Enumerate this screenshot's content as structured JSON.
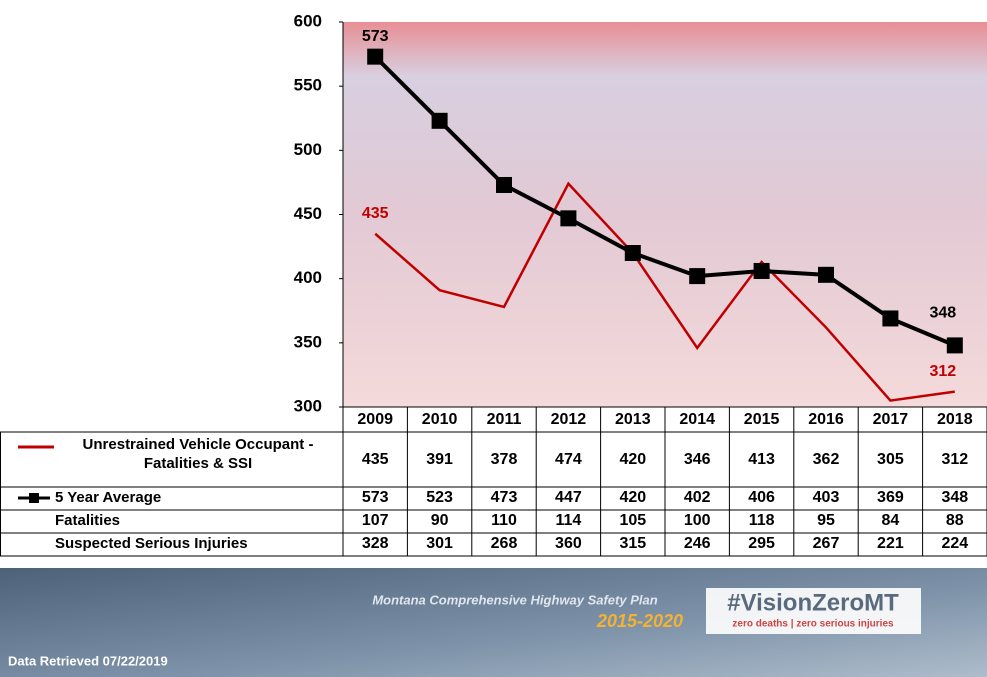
{
  "chart_data": {
    "type": "line",
    "categories": [
      "2009",
      "2010",
      "2011",
      "2012",
      "2013",
      "2014",
      "2015",
      "2016",
      "2017",
      "2018"
    ],
    "series": [
      {
        "name": "Unrestrained Vehicle Occupant - Fatalities & SSI",
        "color": "#c00000",
        "marker": "none",
        "values": [
          435,
          391,
          378,
          474,
          420,
          346,
          413,
          362,
          305,
          312
        ]
      },
      {
        "name": "5 Year Average",
        "color": "#000000",
        "marker": "square",
        "values": [
          573,
          523,
          473,
          447,
          420,
          402,
          406,
          403,
          369,
          348
        ]
      }
    ],
    "table_rows": [
      {
        "name": "Fatalities",
        "values": [
          107,
          90,
          110,
          114,
          105,
          100,
          118,
          95,
          84,
          88
        ]
      },
      {
        "name": "Suspected Serious Injuries",
        "values": [
          328,
          301,
          268,
          360,
          315,
          246,
          295,
          267,
          221,
          224
        ]
      }
    ],
    "data_labels": [
      {
        "series": 1,
        "index": 0
      },
      {
        "series": 0,
        "index": 0
      },
      {
        "series": 1,
        "index": 9
      },
      {
        "series": 0,
        "index": 9
      }
    ],
    "ylim": [
      300,
      600
    ],
    "yticks": [
      300,
      350,
      400,
      450,
      500,
      550,
      600
    ],
    "grid": false
  },
  "footer": {
    "plan": "Montana Comprehensive Highway Safety Plan",
    "years": "2015-2020",
    "hashtag": "#VisionZeroMT",
    "tagline": "zero deaths | zero serious injuries",
    "retrieved": "Data Retrieved 07/22/2019"
  }
}
